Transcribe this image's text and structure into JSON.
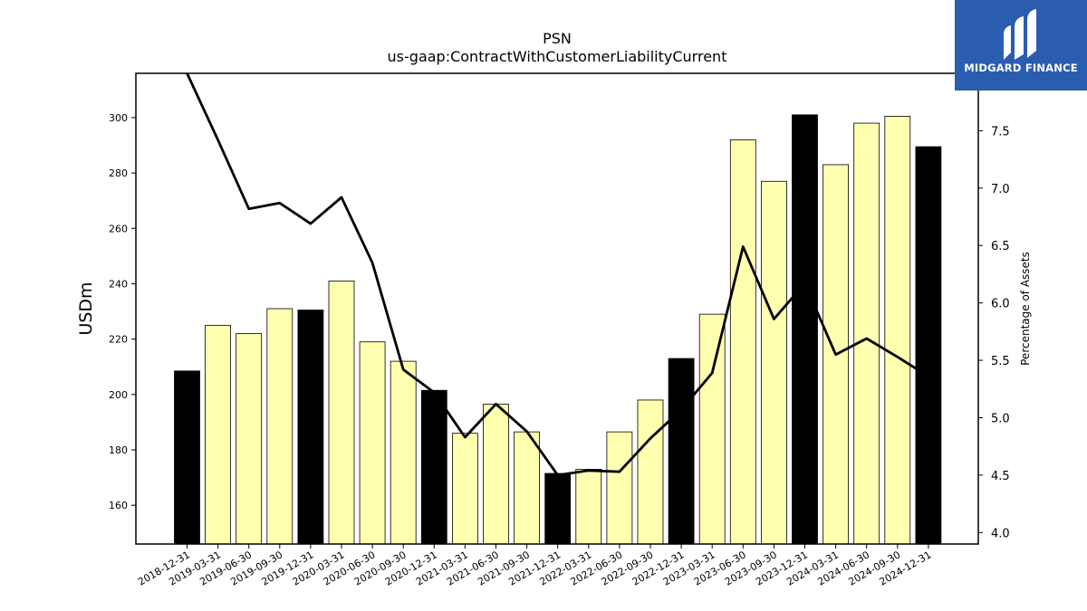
{
  "chart_data": {
    "type": "bar",
    "title": "PSN",
    "subtitle": "us-gaap:ContractWithCustomerLiabilityCurrent",
    "ylabel": "USDm",
    "y2label": "Percentage of Assets",
    "ylim": [
      146,
      316
    ],
    "y2lim": [
      3.9,
      8.0
    ],
    "yticks": [
      160,
      180,
      200,
      220,
      240,
      260,
      280,
      300
    ],
    "y2ticks": [
      4.0,
      4.5,
      5.0,
      5.5,
      6.0,
      6.5,
      7.0,
      7.5
    ],
    "grid": false,
    "categories": [
      "2018-12-31",
      "2019-03-31",
      "2019-06-30",
      "2019-09-30",
      "2019-12-31",
      "2020-03-31",
      "2020-06-30",
      "2020-09-30",
      "2020-12-31",
      "2021-03-31",
      "2021-06-30",
      "2021-09-30",
      "2021-12-31",
      "2022-03-31",
      "2022-06-30",
      "2022-09-30",
      "2022-12-31",
      "2023-03-31",
      "2023-06-30",
      "2023-09-30",
      "2023-12-31",
      "2024-03-31",
      "2024-06-30",
      "2024-09-30",
      "2024-12-31"
    ],
    "values": [
      208.5,
      225,
      222,
      231,
      230.5,
      241,
      219,
      212,
      201.5,
      186,
      196.5,
      186.5,
      171.5,
      173,
      186.5,
      198,
      213,
      229,
      292,
      277,
      301,
      283,
      298,
      300.5,
      289.5
    ],
    "fiscal_year_end": [
      true,
      false,
      false,
      false,
      true,
      false,
      false,
      false,
      true,
      false,
      false,
      false,
      true,
      false,
      false,
      false,
      true,
      false,
      false,
      false,
      true,
      false,
      false,
      false,
      true
    ],
    "series": [
      {
        "name": "Percentage of Assets",
        "axis": "right",
        "values": [
          8.0,
          7.42,
          6.82,
          6.87,
          6.69,
          6.92,
          6.35,
          5.42,
          5.22,
          4.83,
          5.12,
          4.88,
          4.5,
          4.54,
          4.53,
          4.82,
          5.07,
          5.39,
          6.49,
          5.86,
          6.17,
          5.55,
          5.69,
          5.53,
          5.36
        ]
      }
    ],
    "colors": {
      "fiscal_year_end_bar": "#000000",
      "quarter_bar": "#ffffb0",
      "line": "#000000"
    }
  },
  "logo": {
    "text": "MIDGARD FINANCE",
    "color": "#2a5db0"
  }
}
